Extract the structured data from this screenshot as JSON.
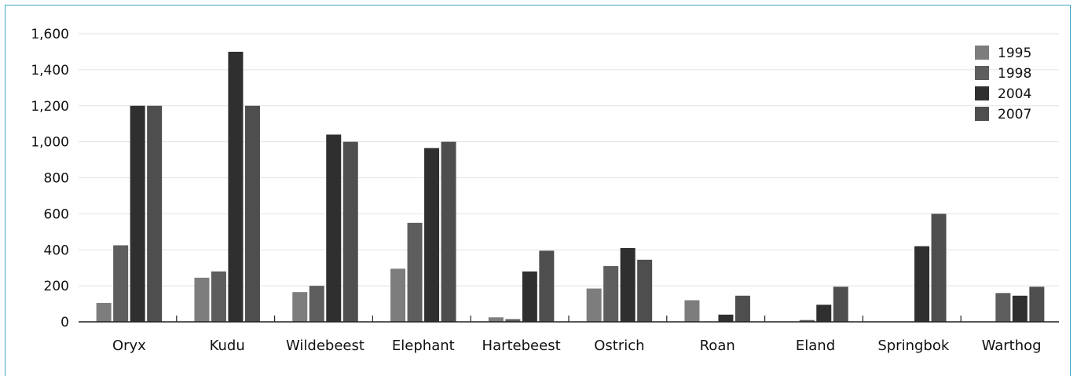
{
  "chart_data": {
    "type": "bar",
    "categories": [
      "Oryx",
      "Kudu",
      "Wildebeest",
      "Elephant",
      "Hartebeest",
      "Ostrich",
      "Roan",
      "Eland",
      "Springbok",
      "Warthog"
    ],
    "series": [
      {
        "name": "1995",
        "color": "#7d7d7d",
        "values": [
          105,
          245,
          165,
          295,
          25,
          185,
          120,
          0,
          0,
          0
        ]
      },
      {
        "name": "1998",
        "color": "#5e5e5e",
        "values": [
          425,
          280,
          200,
          550,
          15,
          310,
          0,
          10,
          0,
          160
        ]
      },
      {
        "name": "2004",
        "color": "#2f2f2f",
        "values": [
          1200,
          1500,
          1040,
          965,
          280,
          410,
          40,
          95,
          420,
          145
        ]
      },
      {
        "name": "2007",
        "color": "#4e4e4e",
        "values": [
          1200,
          1200,
          1000,
          1000,
          395,
          345,
          145,
          195,
          600,
          195
        ]
      }
    ],
    "ylim": [
      0,
      1600
    ],
    "yticks": [
      0,
      200,
      400,
      600,
      800,
      1000,
      1200,
      1400,
      1600
    ],
    "ytick_labels": [
      "0",
      "200",
      "400",
      "600",
      "800",
      "1,000",
      "1,200",
      "1,400",
      "1,600"
    ],
    "title": "",
    "xlabel": "",
    "ylabel": "",
    "grid": true,
    "legend_position": "top-right"
  }
}
